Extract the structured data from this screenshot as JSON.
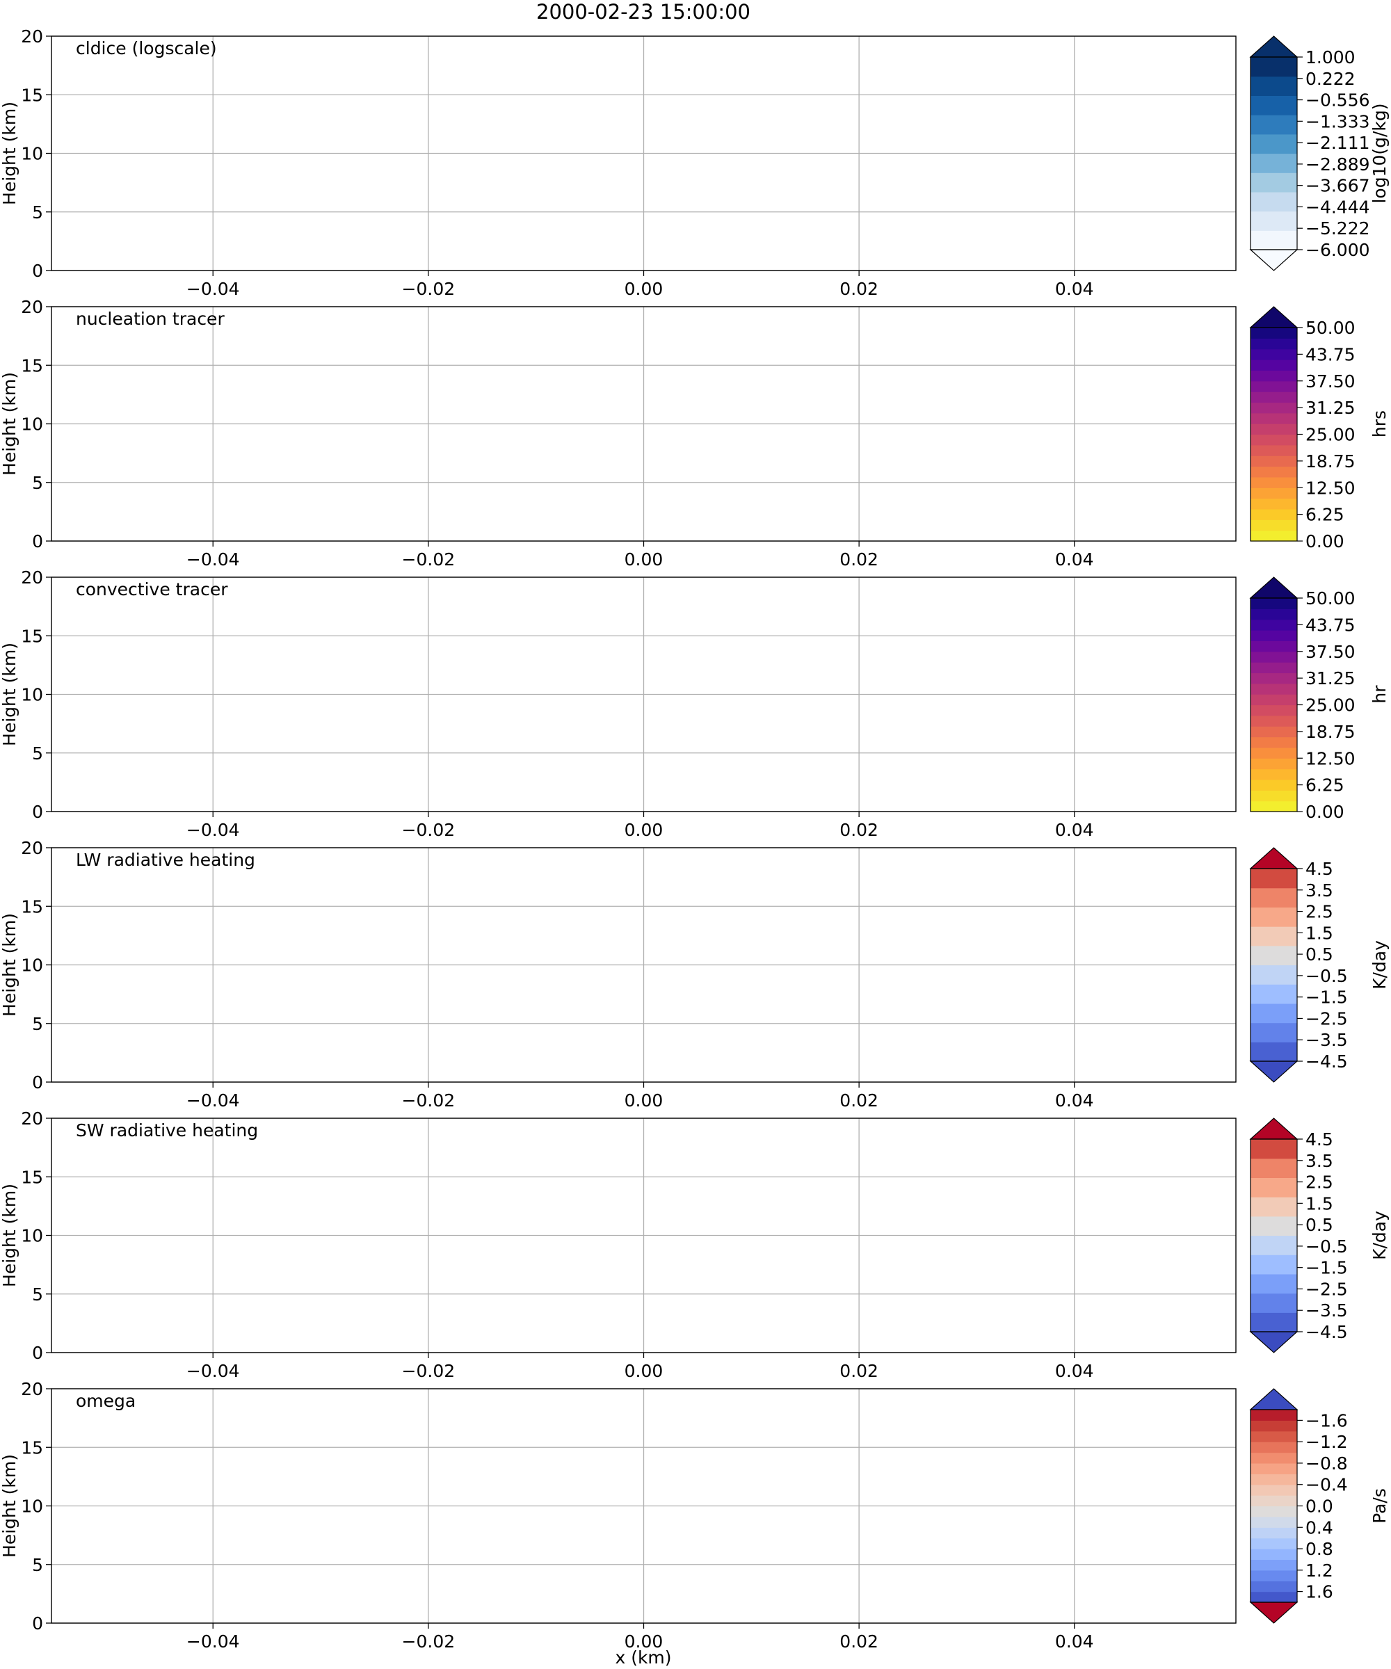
{
  "figure": {
    "title": "2000-02-23 15:00:00",
    "xlabel": "x (km)"
  },
  "chart_data": [
    {
      "type": "heatmap",
      "label": "cldice (logscale)",
      "ylabel": "Height (km)",
      "xlabel": "",
      "xlim": [
        -0.055,
        0.055
      ],
      "ylim": [
        0,
        20
      ],
      "xticks": [
        -0.04,
        -0.02,
        0.0,
        0.02,
        0.04
      ],
      "xtick_labels": [
        "−0.04",
        "−0.02",
        "0.00",
        "0.02",
        "0.04"
      ],
      "yticks": [
        0,
        5,
        10,
        15,
        20
      ],
      "ytick_labels": [
        "0",
        "5",
        "10",
        "15",
        "20"
      ],
      "grid": true,
      "values": [],
      "colorbar": {
        "label": "log10(g/kg)",
        "extend": "both",
        "range": [
          -6,
          1
        ],
        "tick_values": [
          1.0,
          0.222,
          -0.556,
          -1.333,
          -2.111,
          -2.889,
          -3.667,
          -4.444,
          -5.222,
          -6.0
        ],
        "tick_labels": [
          "1.000",
          "0.222",
          "−0.556",
          "−1.333",
          "−2.111",
          "−2.889",
          "−3.667",
          "−4.444",
          "−5.222",
          "−6.000"
        ],
        "colors": [
          "#f2f7fd",
          "#dde9f6",
          "#c6dbef",
          "#a3cbe2",
          "#76b2d8",
          "#4b97c9",
          "#2e7cbc",
          "#1761a8",
          "#0c4a8c",
          "#08306b"
        ],
        "under_color": "#f7fbff",
        "over_color": "#08306b"
      }
    },
    {
      "type": "heatmap",
      "label": "nucleation tracer",
      "ylabel": "Height (km)",
      "xlabel": "",
      "xlim": [
        -0.055,
        0.055
      ],
      "ylim": [
        0,
        20
      ],
      "xticks": [
        -0.04,
        -0.02,
        0.0,
        0.02,
        0.04
      ],
      "xtick_labels": [
        "−0.04",
        "−0.02",
        "0.00",
        "0.02",
        "0.04"
      ],
      "yticks": [
        0,
        5,
        10,
        15,
        20
      ],
      "ytick_labels": [
        "0",
        "5",
        "10",
        "15",
        "20"
      ],
      "grid": true,
      "values": [],
      "colorbar": {
        "label": "hrs",
        "extend": "max",
        "range": [
          0,
          50
        ],
        "tick_values": [
          0,
          6.25,
          12.5,
          18.75,
          25,
          31.25,
          37.5,
          43.75,
          50
        ],
        "tick_labels": [
          "0.00",
          "6.25",
          "12.50",
          "18.75",
          "25.00",
          "31.25",
          "37.50",
          "43.75",
          "50.00"
        ],
        "colors": [
          "#f3ee2e",
          "#f7dd2a",
          "#fbca28",
          "#fdb72e",
          "#fca335",
          "#f98f3d",
          "#f27c46",
          "#e86a4f",
          "#dd5a58",
          "#d24c62",
          "#c53f6c",
          "#b73377",
          "#a72882",
          "#951d8c",
          "#811295",
          "#6c099c",
          "#5504a1",
          "#3f04a0",
          "#2a0596",
          "#16077f"
        ],
        "over_color": "#10066a"
      }
    },
    {
      "type": "heatmap",
      "label": "convective tracer",
      "ylabel": "Height (km)",
      "xlabel": "",
      "xlim": [
        -0.055,
        0.055
      ],
      "ylim": [
        0,
        20
      ],
      "xticks": [
        -0.04,
        -0.02,
        0.0,
        0.02,
        0.04
      ],
      "xtick_labels": [
        "−0.04",
        "−0.02",
        "0.00",
        "0.02",
        "0.04"
      ],
      "yticks": [
        0,
        5,
        10,
        15,
        20
      ],
      "ytick_labels": [
        "0",
        "5",
        "10",
        "15",
        "20"
      ],
      "grid": true,
      "values": [],
      "colorbar": {
        "label": "hr",
        "extend": "max",
        "range": [
          0,
          50
        ],
        "tick_values": [
          0,
          6.25,
          12.5,
          18.75,
          25,
          31.25,
          37.5,
          43.75,
          50
        ],
        "tick_labels": [
          "0.00",
          "6.25",
          "12.50",
          "18.75",
          "25.00",
          "31.25",
          "37.50",
          "43.75",
          "50.00"
        ],
        "colors": [
          "#f3ee2e",
          "#f7dd2a",
          "#fbca28",
          "#fdb72e",
          "#fca335",
          "#f98f3d",
          "#f27c46",
          "#e86a4f",
          "#dd5a58",
          "#d24c62",
          "#c53f6c",
          "#b73377",
          "#a72882",
          "#951d8c",
          "#811295",
          "#6c099c",
          "#5504a1",
          "#3f04a0",
          "#2a0596",
          "#16077f"
        ],
        "over_color": "#10066a"
      }
    },
    {
      "type": "heatmap",
      "label": "LW radiative heating",
      "ylabel": "Height (km)",
      "xlabel": "",
      "xlim": [
        -0.055,
        0.055
      ],
      "ylim": [
        0,
        20
      ],
      "xticks": [
        -0.04,
        -0.02,
        0.0,
        0.02,
        0.04
      ],
      "xtick_labels": [
        "−0.04",
        "−0.02",
        "0.00",
        "0.02",
        "0.04"
      ],
      "yticks": [
        0,
        5,
        10,
        15,
        20
      ],
      "ytick_labels": [
        "0",
        "5",
        "10",
        "15",
        "20"
      ],
      "grid": true,
      "values": [],
      "colorbar": {
        "label": "K/day",
        "extend": "both",
        "range": [
          -4.5,
          4.5
        ],
        "tick_values": [
          -4.5,
          -3.5,
          -2.5,
          -1.5,
          -0.5,
          0.5,
          1.5,
          2.5,
          3.5,
          4.5
        ],
        "tick_labels": [
          "−4.5",
          "−3.5",
          "−2.5",
          "−1.5",
          "−0.5",
          "0.5",
          "1.5",
          "2.5",
          "3.5",
          "4.5"
        ],
        "colors": [
          "#4961d2",
          "#6282ea",
          "#7b9ff9",
          "#9ebeff",
          "#c0d4f5",
          "#dddcdc",
          "#f2cbb7",
          "#f7a889",
          "#ee8468",
          "#d24b40"
        ],
        "under_color": "#3b4cc0",
        "over_color": "#b40426"
      }
    },
    {
      "type": "heatmap",
      "label": "SW radiative heating",
      "ylabel": "Height (km)",
      "xlabel": "",
      "xlim": [
        -0.055,
        0.055
      ],
      "ylim": [
        0,
        20
      ],
      "xticks": [
        -0.04,
        -0.02,
        0.0,
        0.02,
        0.04
      ],
      "xtick_labels": [
        "−0.04",
        "−0.02",
        "0.00",
        "0.02",
        "0.04"
      ],
      "yticks": [
        0,
        5,
        10,
        15,
        20
      ],
      "ytick_labels": [
        "0",
        "5",
        "10",
        "15",
        "20"
      ],
      "grid": true,
      "values": [],
      "colorbar": {
        "label": "K/day",
        "extend": "both",
        "range": [
          -4.5,
          4.5
        ],
        "tick_values": [
          -4.5,
          -3.5,
          -2.5,
          -1.5,
          -0.5,
          0.5,
          1.5,
          2.5,
          3.5,
          4.5
        ],
        "tick_labels": [
          "−4.5",
          "−3.5",
          "−2.5",
          "−1.5",
          "−0.5",
          "0.5",
          "1.5",
          "2.5",
          "3.5",
          "4.5"
        ],
        "colors": [
          "#4961d2",
          "#6282ea",
          "#7b9ff9",
          "#9ebeff",
          "#c0d4f5",
          "#dddcdc",
          "#f2cbb7",
          "#f7a889",
          "#ee8468",
          "#d24b40"
        ],
        "under_color": "#3b4cc0",
        "over_color": "#b40426"
      }
    },
    {
      "type": "heatmap",
      "label": "omega",
      "ylabel": "Height (km)",
      "xlabel": "x (km)",
      "xlim": [
        -0.055,
        0.055
      ],
      "ylim": [
        0,
        20
      ],
      "xticks": [
        -0.04,
        -0.02,
        0.0,
        0.02,
        0.04
      ],
      "xtick_labels": [
        "−0.04",
        "−0.02",
        "0.00",
        "0.02",
        "0.04"
      ],
      "yticks": [
        0,
        5,
        10,
        15,
        20
      ],
      "ytick_labels": [
        "0",
        "5",
        "10",
        "15",
        "20"
      ],
      "grid": true,
      "values": [],
      "colorbar": {
        "label": "Pa/s",
        "extend": "both",
        "range": [
          1.8,
          -1.8
        ],
        "tick_values": [
          1.6,
          1.2,
          0.8,
          0.4,
          0.0,
          -0.4,
          -0.8,
          -1.2,
          -1.6
        ],
        "tick_labels": [
          "1.6",
          "1.2",
          "0.8",
          "0.4",
          "0.0",
          "−0.4",
          "−0.8",
          "−1.2",
          "−1.6"
        ],
        "colors": [
          "#4358cb",
          "#5572df",
          "#688aef",
          "#7da0f9",
          "#93b5fe",
          "#a9c6fd",
          "#bed2f6",
          "#d0daea",
          "#dedcdb",
          "#ead4c8",
          "#f2c8b4",
          "#f5b79c",
          "#f6a385",
          "#f18d6f",
          "#e7745b",
          "#d85a47",
          "#c73e36",
          "#b71d2b"
        ],
        "under_color": "#b40426",
        "over_color": "#3b4cc0"
      }
    }
  ]
}
